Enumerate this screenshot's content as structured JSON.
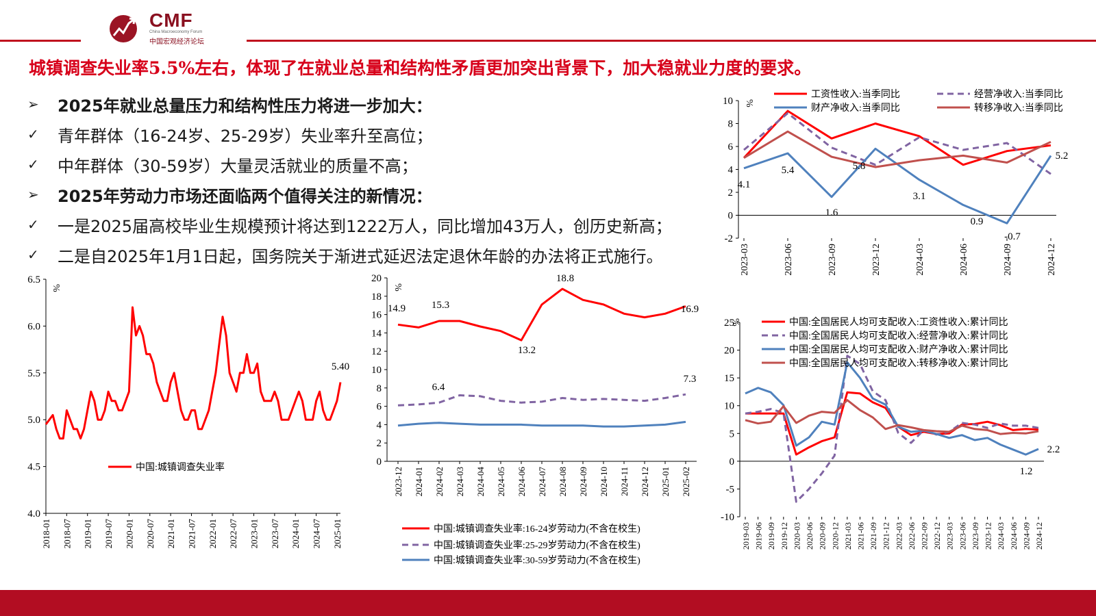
{
  "logo": {
    "name": "CMF",
    "sub": "China Macroeconomy Forum",
    "cn": "中国宏观经济论坛"
  },
  "headline": "城镇调查失业率5.5%左右，体现了在就业总量和结构性矛盾更加突出背景下，加大稳就业力度的要求。",
  "bullets": [
    {
      "marker": "➢",
      "bold": true,
      "text": "2025年就业总量压力和结构性压力将进一步加大："
    },
    {
      "marker": "✓",
      "bold": false,
      "text": "青年群体（16-24岁、25-29岁）失业率升至高位；"
    },
    {
      "marker": "✓",
      "bold": false,
      "text": "中年群体（30-59岁）大量灵活就业的质量不高；"
    },
    {
      "marker": "➢",
      "bold": true,
      "text": "2025年劳动力市场还面临两个值得关注的新情况："
    },
    {
      "marker": "✓",
      "bold": false,
      "text": "一是2025届高校毕业生规模预计将达到1222万人，同比增加43万人，创历史新高；"
    },
    {
      "marker": "✓",
      "bold": false,
      "text": "二是自2025年1月1日起，国务院关于渐进式延迟法定退休年龄的办法将正式施行。"
    }
  ],
  "chart_data": [
    {
      "type": "line",
      "ylabel": "%",
      "ylim": [
        4.0,
        6.5
      ],
      "yticks": [
        "4.0",
        "4.5",
        "5.0",
        "5.5",
        "6.0",
        "6.5"
      ],
      "xticks": [
        "2018-01",
        "2018-07",
        "2019-01",
        "2019-07",
        "2020-01",
        "2020-07",
        "2021-01",
        "2021-07",
        "2022-01",
        "2022-07",
        "2023-01",
        "2023-07",
        "2024-01",
        "2024-07",
        "2025-01"
      ],
      "series": [
        {
          "name": "中国:城镇调查失业率",
          "color": "#ff0000",
          "values": [
            4.95,
            5.0,
            5.05,
            4.9,
            4.8,
            4.8,
            5.1,
            5.0,
            4.9,
            4.9,
            4.8,
            4.9,
            5.1,
            5.3,
            5.2,
            5.0,
            5.0,
            5.1,
            5.3,
            5.2,
            5.2,
            5.1,
            5.1,
            5.2,
            5.3,
            6.2,
            5.9,
            6.0,
            5.9,
            5.7,
            5.7,
            5.6,
            5.4,
            5.3,
            5.2,
            5.2,
            5.4,
            5.5,
            5.3,
            5.1,
            5.0,
            5.0,
            5.1,
            5.1,
            4.9,
            4.9,
            5.0,
            5.1,
            5.3,
            5.5,
            5.8,
            6.1,
            5.9,
            5.5,
            5.4,
            5.3,
            5.5,
            5.5,
            5.7,
            5.5,
            5.5,
            5.6,
            5.3,
            5.2,
            5.2,
            5.2,
            5.3,
            5.2,
            5.0,
            5.0,
            5.0,
            5.1,
            5.2,
            5.3,
            5.2,
            5.0,
            5.0,
            5.0,
            5.2,
            5.3,
            5.1,
            5.0,
            5.0,
            5.1,
            5.2,
            5.4
          ]
        }
      ],
      "annotations": [
        {
          "text": "5.40"
        }
      ],
      "legend": "center"
    },
    {
      "type": "line",
      "ylabel": "%",
      "ylim": [
        0,
        20
      ],
      "yticks": [
        "0",
        "2",
        "4",
        "6",
        "8",
        "10",
        "12",
        "14",
        "16",
        "18",
        "20"
      ],
      "categories": [
        "2023-12",
        "2024-01",
        "2024-02",
        "2024-03",
        "2024-04",
        "2024-05",
        "2024-06",
        "2024-07",
        "2024-08",
        "2024-09",
        "2024-10",
        "2024-11",
        "2024-12",
        "2025-01",
        "2025-02"
      ],
      "series": [
        {
          "name": "中国:城镇调查失业率:16-24岁劳动力(不含在校生)",
          "color": "#ff0000",
          "dash": false,
          "values": [
            14.9,
            14.6,
            15.3,
            15.3,
            14.7,
            14.2,
            13.2,
            17.1,
            18.8,
            17.6,
            17.1,
            16.1,
            15.7,
            16.1,
            16.9
          ]
        },
        {
          "name": "中国:城镇调查失业率:25-29岁劳动力(不含在校生)",
          "color": "#8064a2",
          "dash": true,
          "values": [
            6.1,
            6.2,
            6.4,
            7.2,
            7.1,
            6.6,
            6.4,
            6.5,
            6.9,
            6.7,
            6.8,
            6.7,
            6.6,
            6.9,
            7.3
          ]
        },
        {
          "name": "中国:城镇调查失业率:30-59岁劳动力(不含在校生)",
          "color": "#4f81bd",
          "dash": false,
          "values": [
            3.9,
            4.1,
            4.2,
            4.1,
            4.0,
            4.0,
            4.0,
            3.9,
            3.9,
            3.9,
            3.8,
            3.8,
            3.9,
            4.0,
            4.3
          ]
        }
      ],
      "annotations": [
        {
          "text": "14.9"
        },
        {
          "text": "15.3"
        },
        {
          "text": "13.2"
        },
        {
          "text": "18.8"
        },
        {
          "text": "16.9"
        },
        {
          "text": "6.4"
        },
        {
          "text": "7.3"
        }
      ],
      "legend": "bottom"
    },
    {
      "type": "line",
      "ylabel": "%",
      "ylim": [
        -2,
        10
      ],
      "yticks": [
        "-2",
        "0",
        "2",
        "4",
        "6",
        "8",
        "10"
      ],
      "categories": [
        "2023-03",
        "2023-06",
        "2023-09",
        "2023-12",
        "2024-03",
        "2024-06",
        "2024-09",
        "2024-12"
      ],
      "series": [
        {
          "name": "工资性收入:当季同比",
          "color": "#ff0000",
          "dash": false,
          "values": [
            5.0,
            9.1,
            6.7,
            8.0,
            6.9,
            4.4,
            5.6,
            6.1
          ]
        },
        {
          "name": "经营净收入:当季同比",
          "color": "#8064a2",
          "dash": true,
          "values": [
            5.7,
            8.9,
            5.9,
            4.4,
            6.8,
            5.7,
            6.3,
            3.6
          ]
        },
        {
          "name": "财产净收入:当季同比",
          "color": "#4f81bd",
          "dash": false,
          "values": [
            4.1,
            5.4,
            1.6,
            5.8,
            3.1,
            0.9,
            -0.7,
            5.2
          ]
        },
        {
          "name": "转移净收入:当季同比",
          "color": "#c0504d",
          "dash": false,
          "values": [
            5.0,
            7.3,
            5.1,
            4.2,
            4.8,
            5.2,
            4.6,
            6.4
          ]
        }
      ],
      "annotations": [
        {
          "text": "4.1"
        },
        {
          "text": "5.4"
        },
        {
          "text": "1.6"
        },
        {
          "text": "5.8"
        },
        {
          "text": "3.1"
        },
        {
          "text": "0.9"
        },
        {
          "text": "-0.7"
        },
        {
          "text": "5.2"
        }
      ],
      "legend": "top"
    },
    {
      "type": "line",
      "ylabel": "%",
      "ylim": [
        -10,
        25
      ],
      "yticks": [
        "-10",
        "-5",
        "0",
        "5",
        "10",
        "15",
        "20",
        "25"
      ],
      "categories": [
        "2019-03",
        "2019-06",
        "2019-09",
        "2019-12",
        "2020-03",
        "2020-06",
        "2020-09",
        "2020-12",
        "2021-03",
        "2021-06",
        "2021-09",
        "2021-12",
        "2022-03",
        "2022-06",
        "2022-09",
        "2022-12",
        "2023-03",
        "2023-06",
        "2023-09",
        "2023-12",
        "2024-03",
        "2024-06",
        "2024-09",
        "2024-12"
      ],
      "series": [
        {
          "name": "中国:全国居民人均可支配收入:工资性收入:累计同比",
          "color": "#ff0000",
          "dash": false,
          "values": [
            8.6,
            8.6,
            8.6,
            8.6,
            1.2,
            2.5,
            3.6,
            4.3,
            12.4,
            12.2,
            10.6,
            9.6,
            6.2,
            4.7,
            5.3,
            4.9,
            5.0,
            6.6,
            6.7,
            7.1,
            6.5,
            5.6,
            5.8,
            5.7
          ]
        },
        {
          "name": "中国:全国居民人均可支配收入:经营净收入:累计同比",
          "color": "#8064a2",
          "dash": true,
          "values": [
            8.6,
            8.9,
            9.4,
            8.7,
            -7.3,
            -5.0,
            -2.2,
            1.0,
            19.0,
            17.5,
            12.6,
            11.0,
            5.1,
            3.3,
            5.6,
            4.8,
            5.3,
            6.9,
            6.6,
            6.0,
            6.8,
            6.4,
            6.4,
            6.0
          ]
        },
        {
          "name": "中国:全国居民人均可支配收入:财产净收入:累计同比",
          "color": "#4f81bd",
          "dash": false,
          "values": [
            12.2,
            13.2,
            12.4,
            10.1,
            2.8,
            4.3,
            7.1,
            6.6,
            17.8,
            15.0,
            11.3,
            10.2,
            6.2,
            5.3,
            5.5,
            4.9,
            4.2,
            4.7,
            3.8,
            4.2,
            3.0,
            2.1,
            1.2,
            2.2
          ]
        },
        {
          "name": "中国:全国居民人均可支配收入:转移净收入:累计同比",
          "color": "#c0504d",
          "dash": false,
          "values": [
            7.4,
            6.8,
            7.1,
            9.9,
            6.9,
            8.2,
            8.9,
            8.7,
            11.0,
            9.2,
            7.9,
            5.8,
            6.5,
            6.1,
            5.6,
            5.4,
            5.3,
            6.4,
            5.8,
            5.6,
            4.9,
            5.1,
            5.0,
            5.4
          ]
        }
      ],
      "annotations": [
        {
          "text": "2.2"
        },
        {
          "text": "1.2"
        }
      ],
      "legend": "top"
    }
  ]
}
